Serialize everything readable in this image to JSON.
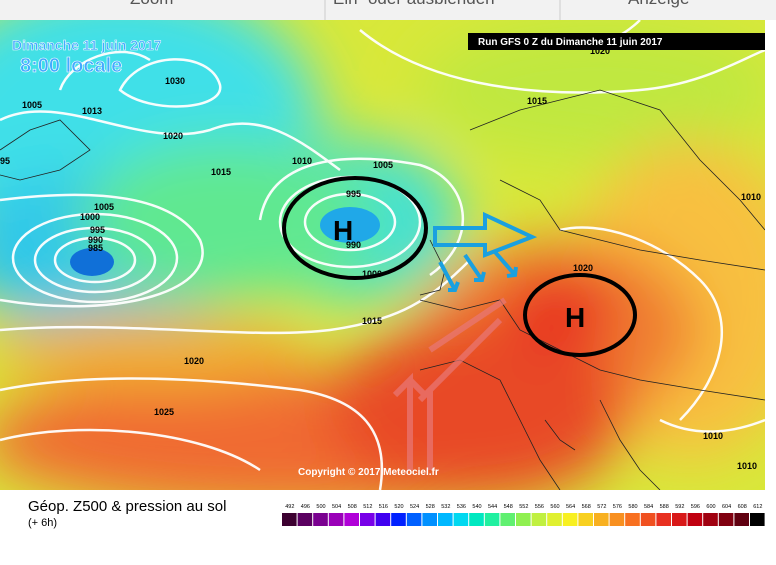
{
  "toolbar": {
    "items": [
      "Zoom",
      "Ein- oder ausblenden",
      "Anzeige"
    ]
  },
  "map": {
    "date": "Dimanche 11 juin 2017",
    "time": "8:00 locale",
    "run": "Run GFS 0 Z du Dimanche 11 juin 2017",
    "highs": [
      "H",
      "H"
    ],
    "isobar_labels": [
      "1030",
      "1005",
      "1013",
      "1020",
      "1015",
      "1010",
      "1005",
      "995",
      "990",
      "1005",
      "1000",
      "995",
      "990",
      "985",
      "1000",
      "1015",
      "1020",
      "1025",
      "1015",
      "1020",
      "1020",
      "1010",
      "1010",
      "1010",
      "95"
    ],
    "copyright": "Copyright © 2017 Meteociel.fr"
  },
  "footer": {
    "title": "Géop. Z500 & pression au sol",
    "step": "(+ 6h)",
    "scale": [
      492,
      496,
      500,
      504,
      508,
      512,
      516,
      520,
      524,
      528,
      532,
      536,
      540,
      544,
      548,
      552,
      556,
      560,
      564,
      568,
      572,
      576,
      580,
      584,
      588,
      592,
      596,
      600,
      604,
      608,
      612
    ]
  }
}
